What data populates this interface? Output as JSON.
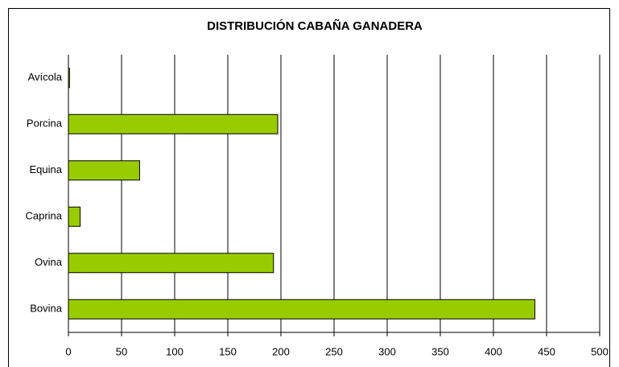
{
  "chart_data": {
    "type": "bar",
    "orientation": "horizontal",
    "title": "DISTRIBUCIÓN CABAÑA GANADERA",
    "categories": [
      "Avícola",
      "Porcina",
      "Equina",
      "Caprina",
      "Ovina",
      "Bovina"
    ],
    "values": [
      1,
      197,
      67,
      11,
      193,
      439
    ],
    "color": "#99cc00",
    "xlim": [
      0,
      500
    ],
    "xticks": [
      0,
      50,
      100,
      150,
      200,
      250,
      300,
      350,
      400,
      450,
      500
    ],
    "grid": true
  }
}
